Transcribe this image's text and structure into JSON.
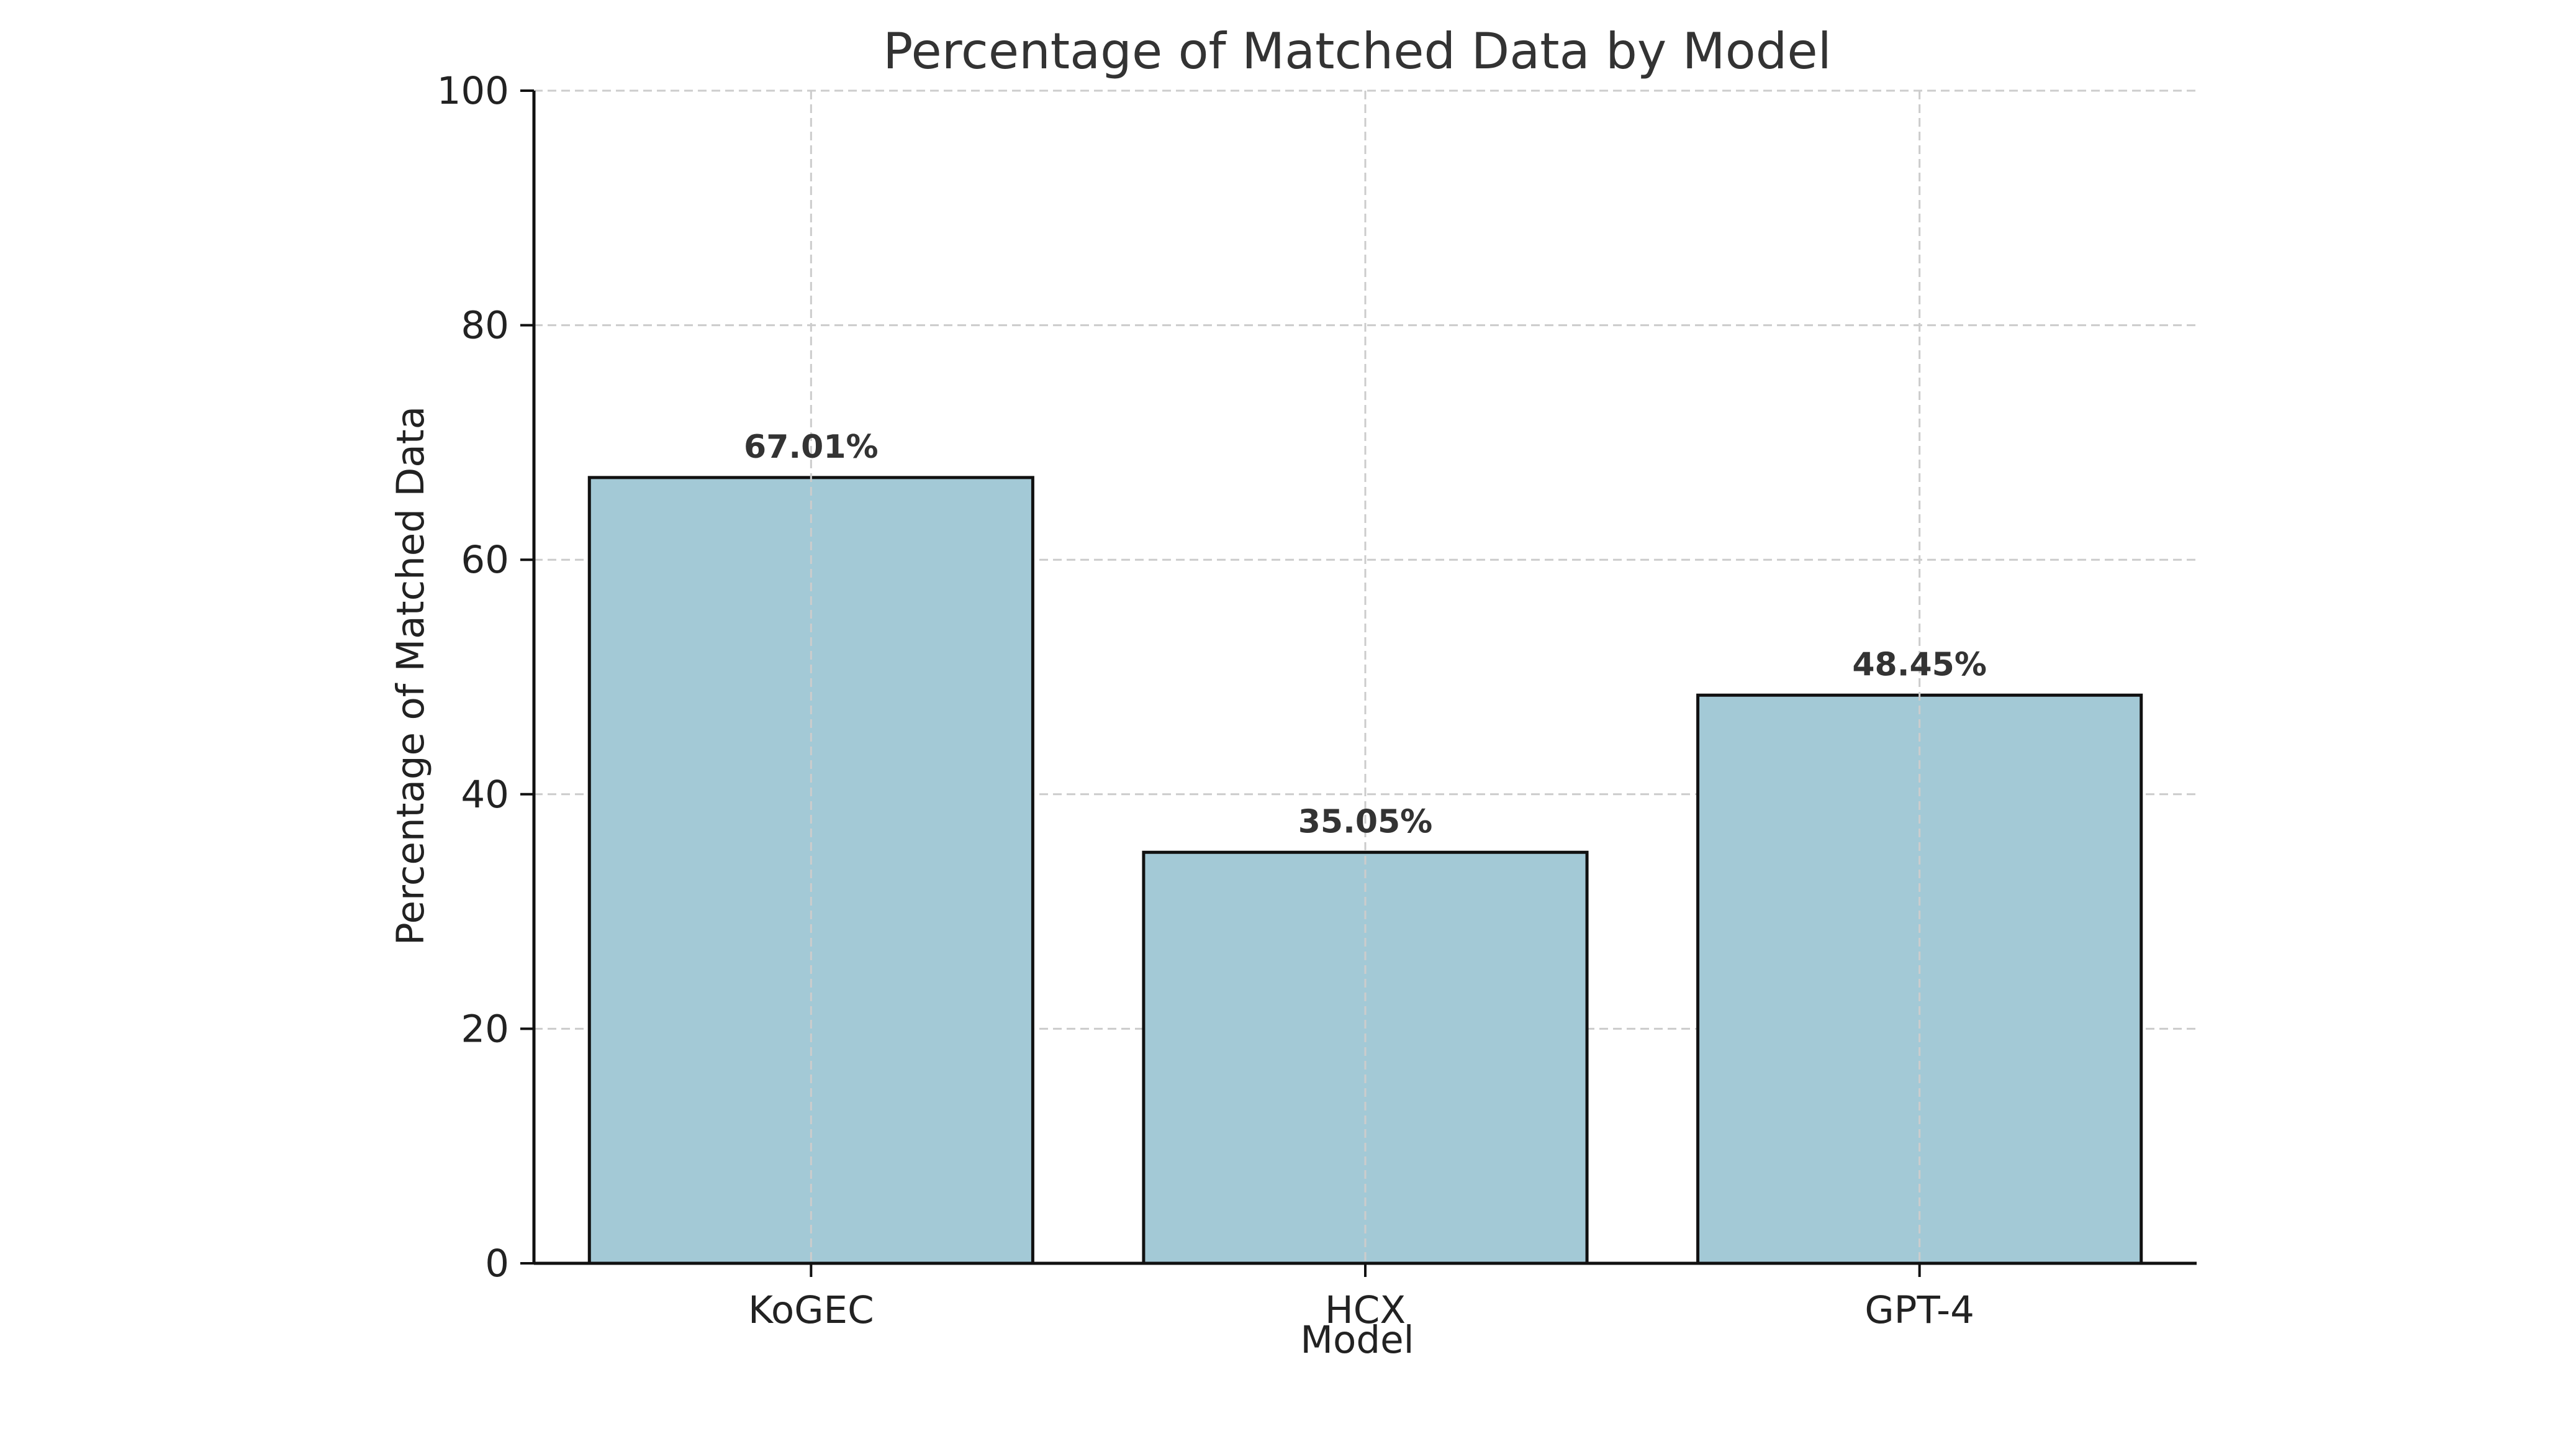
{
  "chart_data": {
    "type": "bar",
    "title": "Percentage of Matched Data by Model",
    "xlabel": "Model",
    "ylabel": "Percentage of Matched Data",
    "categories": [
      "KoGEC",
      "HCX",
      "GPT-4"
    ],
    "values": [
      67.01,
      35.05,
      48.45
    ],
    "data_labels": [
      "67.01%",
      "35.05%",
      "48.45%"
    ],
    "ylim": [
      0,
      100
    ],
    "yticks": [
      0,
      20,
      40,
      60,
      80,
      100
    ],
    "ytick_labels": [
      "0",
      "20",
      "40",
      "60",
      "80",
      "100"
    ],
    "grid": true,
    "bar_color": "#a3c9d6",
    "bar_edge_color": "#111111",
    "grid_color": "#cccccc"
  }
}
